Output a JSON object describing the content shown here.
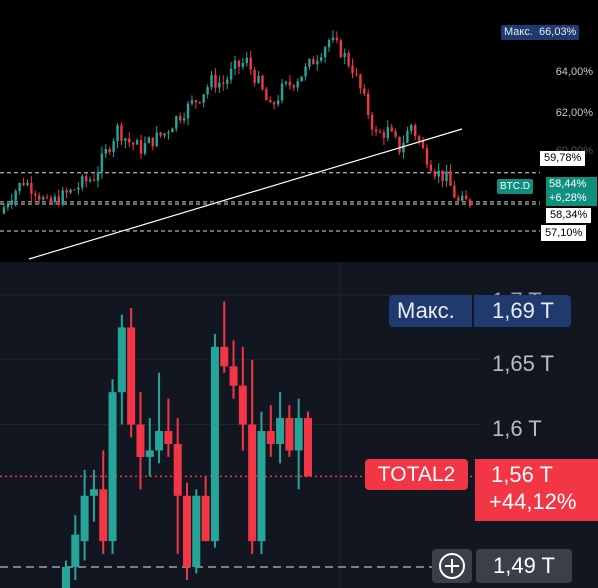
{
  "top_chart": {
    "symbol": "BTC.D",
    "max_label": "Макс.",
    "max_value": "66,03%",
    "ticks": [
      "64,00%",
      "62,00%",
      "60,00%"
    ],
    "level_59": "59,78%",
    "current_value": "58,44%",
    "current_change": "+6,28%",
    "level_58": "58,34%",
    "level_57": "57,10%"
  },
  "bottom_chart": {
    "symbol": "TOTAL2",
    "max_label": "Макс.",
    "max_value": "1,69 T",
    "ticks": [
      "1,7 T",
      "1,65 T",
      "1,6 T"
    ],
    "current_value": "1,56 T",
    "current_change": "+44,12%",
    "crosshair_value": "1,49 T"
  },
  "colors": {
    "up": "#26a69a",
    "down": "#f23645",
    "max_badge": "#1e3a6e",
    "current_badge": "#0f8f7e"
  },
  "chart_data": [
    {
      "type": "candlestick",
      "series_name": "BTC.D",
      "unit": "%",
      "ylim": [
        56.8,
        66.6
      ],
      "max": 66.03,
      "last": 58.44,
      "change_pct": 6.28,
      "horizontal_levels": [
        59.78,
        58.34,
        57.1
      ],
      "trendline": [
        [
          0,
          56.9
        ],
        [
          1,
          60.5
        ]
      ],
      "close_path": [
        57.9,
        58.8,
        59.4,
        59.0,
        58.3,
        58.6,
        58.9,
        59.3,
        59.6,
        60.7,
        61.8,
        61.2,
        60.9,
        61.3,
        61.6,
        62.3,
        62.8,
        63.3,
        64.0,
        63.9,
        64.6,
        64.9,
        63.9,
        62.7,
        63.6,
        64.0,
        64.5,
        65.2,
        65.9,
        65.4,
        64.6,
        63.1,
        61.5,
        61.7,
        60.9,
        62.0,
        60.8,
        59.9,
        59.5,
        58.4,
        58.44
      ],
      "ticks": [
        "64,00%",
        "62,00%",
        "60,00%"
      ]
    },
    {
      "type": "candlestick",
      "series_name": "TOTAL2",
      "unit": "T",
      "ylim": [
        1.475,
        1.726
      ],
      "max": 1.69,
      "last": 1.56,
      "change_pct": 44.12,
      "ticks": [
        "1,7 T",
        "1,65 T",
        "1,6 T"
      ],
      "candles": [
        {
          "o": 1.47,
          "h": 1.495,
          "l": 1.46,
          "c": 1.49
        },
        {
          "o": 1.49,
          "h": 1.53,
          "l": 1.48,
          "c": 1.515
        },
        {
          "o": 1.51,
          "h": 1.565,
          "l": 1.495,
          "c": 1.545
        },
        {
          "o": 1.545,
          "h": 1.565,
          "l": 1.525,
          "c": 1.55
        },
        {
          "o": 1.55,
          "h": 1.58,
          "l": 1.5,
          "c": 1.51
        },
        {
          "o": 1.51,
          "h": 1.635,
          "l": 1.5,
          "c": 1.625
        },
        {
          "o": 1.625,
          "h": 1.685,
          "l": 1.6,
          "c": 1.675
        },
        {
          "o": 1.675,
          "h": 1.69,
          "l": 1.59,
          "c": 1.6
        },
        {
          "o": 1.6,
          "h": 1.625,
          "l": 1.55,
          "c": 1.575
        },
        {
          "o": 1.575,
          "h": 1.605,
          "l": 1.56,
          "c": 1.58
        },
        {
          "o": 1.58,
          "h": 1.64,
          "l": 1.57,
          "c": 1.595
        },
        {
          "o": 1.595,
          "h": 1.62,
          "l": 1.575,
          "c": 1.585
        },
        {
          "o": 1.585,
          "h": 1.605,
          "l": 1.5,
          "c": 1.545
        },
        {
          "o": 1.545,
          "h": 1.555,
          "l": 1.48,
          "c": 1.49
        },
        {
          "o": 1.49,
          "h": 1.55,
          "l": 1.485,
          "c": 1.545
        },
        {
          "o": 1.545,
          "h": 1.56,
          "l": 1.51,
          "c": 1.51
        },
        {
          "o": 1.51,
          "h": 1.67,
          "l": 1.505,
          "c": 1.66
        },
        {
          "o": 1.66,
          "h": 1.695,
          "l": 1.64,
          "c": 1.645
        },
        {
          "o": 1.645,
          "h": 1.665,
          "l": 1.62,
          "c": 1.63
        },
        {
          "o": 1.63,
          "h": 1.66,
          "l": 1.58,
          "c": 1.6
        },
        {
          "o": 1.6,
          "h": 1.65,
          "l": 1.5,
          "c": 1.51
        },
        {
          "o": 1.51,
          "h": 1.61,
          "l": 1.5,
          "c": 1.595
        },
        {
          "o": 1.595,
          "h": 1.615,
          "l": 1.575,
          "c": 1.585
        },
        {
          "o": 1.585,
          "h": 1.625,
          "l": 1.57,
          "c": 1.605
        },
        {
          "o": 1.605,
          "h": 1.615,
          "l": 1.575,
          "c": 1.58
        },
        {
          "o": 1.58,
          "h": 1.62,
          "l": 1.55,
          "c": 1.605
        },
        {
          "o": 1.605,
          "h": 1.61,
          "l": 1.56,
          "c": 1.56
        }
      ]
    }
  ]
}
